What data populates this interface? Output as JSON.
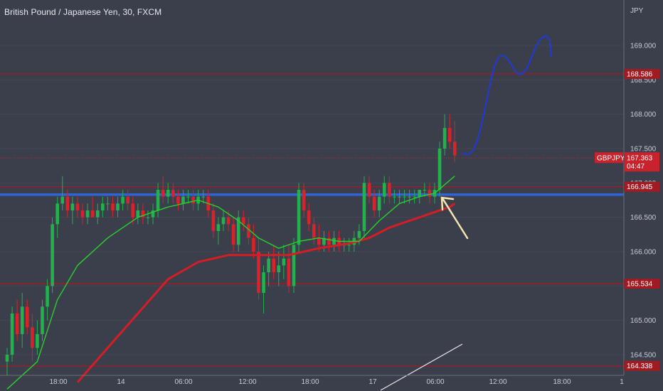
{
  "chart_data": {
    "type": "candlestick",
    "title": "British Pound / Japanese Yen, 30, FXCM",
    "currency": "JPY",
    "symbol": "GBPJPY",
    "ylim": [
      164.2,
      169.6
    ],
    "y_ticks": [
      "169.000",
      "168.500",
      "168.000",
      "167.500",
      "167.000",
      "166.500",
      "166.000",
      "165.500",
      "165.000",
      "164.500"
    ],
    "x_ticks": [
      "18:00",
      "14",
      "06:00",
      "12:00",
      "18:00",
      "17",
      "06:00",
      "12:00",
      "18:00",
      "1"
    ],
    "price_tag": {
      "value": "167.363",
      "countdown": "04:47",
      "color": "#c8232c"
    },
    "horizontal_levels": [
      {
        "value": 168.586,
        "label": "168.586",
        "color": "#a31b22"
      },
      {
        "value": 166.945,
        "label": "166.945",
        "color": "#a31b22"
      },
      {
        "value": 165.534,
        "label": "165.534",
        "color": "#a31b22"
      },
      {
        "value": 164.338,
        "label": "164.338",
        "color": "#a31b22"
      }
    ],
    "blue_level": {
      "value": 166.83,
      "color": "#2f63d6"
    },
    "colors": {
      "up": "#22b14c",
      "down": "#d9222a",
      "ma_fast": "#28d02c",
      "ma_slow": "#d41d24",
      "projection": "#1f3ad8",
      "arrow": "#f5e6b0"
    },
    "candles": [
      [
        164.4,
        164.6,
        164.2,
        164.5
      ],
      [
        164.5,
        165.2,
        164.4,
        165.1
      ],
      [
        165.1,
        165.3,
        164.7,
        164.8
      ],
      [
        164.8,
        165.4,
        164.6,
        165.2
      ],
      [
        165.2,
        165.3,
        164.8,
        164.9
      ],
      [
        164.9,
        165.1,
        164.4,
        164.6
      ],
      [
        164.6,
        165.0,
        164.5,
        164.8
      ],
      [
        164.8,
        165.3,
        164.7,
        165.2
      ],
      [
        165.2,
        165.6,
        165.0,
        165.5
      ],
      [
        165.5,
        166.5,
        165.4,
        166.4
      ],
      [
        166.4,
        166.8,
        166.2,
        166.7
      ],
      [
        166.7,
        167.1,
        166.6,
        166.8
      ],
      [
        166.8,
        166.9,
        166.5,
        166.6
      ],
      [
        166.6,
        166.8,
        166.4,
        166.7
      ],
      [
        166.7,
        166.8,
        166.5,
        166.6
      ],
      [
        166.6,
        166.7,
        166.4,
        166.5
      ],
      [
        166.5,
        166.7,
        166.4,
        166.6
      ],
      [
        166.6,
        166.8,
        166.5,
        166.5
      ],
      [
        166.5,
        166.7,
        166.4,
        166.6
      ],
      [
        166.6,
        166.8,
        166.5,
        166.7
      ],
      [
        166.7,
        166.8,
        166.6,
        166.7
      ],
      [
        166.7,
        166.8,
        166.5,
        166.6
      ],
      [
        166.6,
        166.8,
        166.5,
        166.7
      ],
      [
        166.7,
        166.9,
        166.6,
        166.8
      ],
      [
        166.8,
        166.9,
        166.6,
        166.7
      ],
      [
        166.7,
        166.8,
        166.4,
        166.5
      ],
      [
        166.5,
        166.7,
        166.4,
        166.6
      ],
      [
        166.6,
        166.7,
        166.4,
        166.5
      ],
      [
        166.5,
        166.6,
        166.4,
        166.5
      ],
      [
        166.5,
        166.7,
        166.4,
        166.6
      ],
      [
        166.6,
        167.0,
        166.5,
        166.9
      ],
      [
        166.9,
        167.1,
        166.7,
        166.8
      ],
      [
        166.8,
        167.0,
        166.7,
        166.9
      ],
      [
        166.9,
        167.0,
        166.7,
        166.8
      ],
      [
        166.8,
        166.9,
        166.6,
        166.7
      ],
      [
        166.7,
        166.9,
        166.6,
        166.8
      ],
      [
        166.8,
        166.9,
        166.7,
        166.8
      ],
      [
        166.8,
        166.9,
        166.6,
        166.7
      ],
      [
        166.7,
        166.9,
        166.6,
        166.8
      ],
      [
        166.8,
        166.9,
        166.7,
        166.8
      ],
      [
        166.8,
        166.9,
        166.5,
        166.6
      ],
      [
        166.6,
        166.7,
        166.2,
        166.3
      ],
      [
        166.3,
        166.5,
        166.1,
        166.4
      ],
      [
        166.4,
        166.6,
        166.3,
        166.5
      ],
      [
        166.5,
        166.6,
        166.3,
        166.4
      ],
      [
        166.4,
        166.5,
        166.0,
        166.1
      ],
      [
        166.1,
        166.6,
        166.0,
        166.5
      ],
      [
        166.5,
        166.6,
        166.3,
        166.4
      ],
      [
        166.4,
        166.5,
        166.1,
        166.2
      ],
      [
        166.2,
        166.4,
        165.9,
        166.0
      ],
      [
        166.0,
        166.2,
        165.3,
        165.4
      ],
      [
        165.4,
        165.8,
        165.1,
        165.7
      ],
      [
        165.7,
        166.0,
        165.5,
        165.9
      ],
      [
        165.9,
        166.1,
        165.6,
        165.7
      ],
      [
        165.7,
        166.0,
        165.5,
        165.8
      ],
      [
        165.8,
        166.1,
        165.6,
        165.9
      ],
      [
        165.9,
        166.1,
        165.4,
        165.5
      ],
      [
        165.5,
        166.2,
        165.4,
        166.1
      ],
      [
        166.1,
        167.0,
        166.0,
        166.9
      ],
      [
        166.9,
        167.0,
        166.5,
        166.6
      ],
      [
        166.6,
        166.7,
        166.3,
        166.4
      ],
      [
        166.4,
        166.5,
        166.1,
        166.2
      ],
      [
        166.2,
        166.4,
        166.0,
        166.1
      ],
      [
        166.1,
        166.3,
        166.0,
        166.2
      ],
      [
        166.2,
        166.3,
        166.0,
        166.1
      ],
      [
        166.1,
        166.3,
        166.0,
        166.2
      ],
      [
        166.2,
        166.3,
        166.0,
        166.1
      ],
      [
        166.1,
        166.2,
        166.0,
        166.1
      ],
      [
        166.1,
        166.2,
        166.0,
        166.1
      ],
      [
        166.1,
        166.3,
        166.0,
        166.2
      ],
      [
        166.2,
        166.4,
        166.1,
        166.3
      ],
      [
        166.3,
        167.1,
        166.2,
        167.0
      ],
      [
        167.0,
        167.1,
        166.7,
        166.8
      ],
      [
        166.8,
        166.9,
        166.5,
        166.6
      ],
      [
        166.6,
        166.9,
        166.5,
        166.8
      ],
      [
        166.8,
        167.1,
        166.7,
        167.0
      ],
      [
        167.0,
        167.1,
        166.7,
        166.8
      ],
      [
        166.8,
        166.9,
        166.7,
        166.8
      ],
      [
        166.8,
        166.9,
        166.7,
        166.8
      ],
      [
        166.8,
        166.9,
        166.7,
        166.8
      ],
      [
        166.8,
        166.9,
        166.7,
        166.8
      ],
      [
        166.8,
        166.9,
        166.7,
        166.8
      ],
      [
        166.8,
        166.9,
        166.7,
        166.9
      ],
      [
        166.9,
        167.0,
        166.8,
        166.9
      ],
      [
        166.9,
        167.0,
        166.7,
        166.8
      ],
      [
        166.8,
        167.0,
        166.7,
        166.9
      ],
      [
        166.9,
        167.6,
        166.8,
        167.5
      ],
      [
        167.5,
        168.0,
        167.4,
        167.8
      ],
      [
        167.8,
        168.0,
        167.5,
        167.6
      ],
      [
        167.6,
        167.9,
        167.3,
        167.4
      ]
    ],
    "ma_fast": [
      [
        0,
        164.0
      ],
      [
        6,
        164.4
      ],
      [
        10,
        165.3
      ],
      [
        14,
        165.8
      ],
      [
        20,
        166.2
      ],
      [
        26,
        166.5
      ],
      [
        32,
        166.65
      ],
      [
        38,
        166.75
      ],
      [
        42,
        166.65
      ],
      [
        46,
        166.45
      ],
      [
        50,
        166.2
      ],
      [
        54,
        166.05
      ],
      [
        58,
        166.15
      ],
      [
        62,
        166.2
      ],
      [
        66,
        166.15
      ],
      [
        70,
        166.15
      ],
      [
        74,
        166.45
      ],
      [
        78,
        166.7
      ],
      [
        82,
        166.8
      ],
      [
        85,
        166.85
      ],
      [
        89,
        167.1
      ]
    ],
    "ma_slow": [
      [
        14,
        164.1
      ],
      [
        20,
        164.6
      ],
      [
        26,
        165.1
      ],
      [
        32,
        165.6
      ],
      [
        38,
        165.85
      ],
      [
        44,
        165.95
      ],
      [
        50,
        165.95
      ],
      [
        56,
        165.95
      ],
      [
        62,
        166.05
      ],
      [
        68,
        166.12
      ],
      [
        72,
        166.2
      ],
      [
        76,
        166.35
      ],
      [
        80,
        166.45
      ],
      [
        84,
        166.55
      ],
      [
        88,
        166.65
      ],
      [
        89,
        166.7
      ]
    ]
  }
}
